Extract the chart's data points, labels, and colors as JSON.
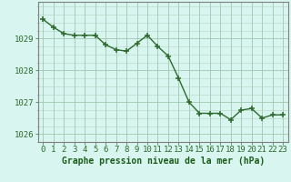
{
  "x": [
    0,
    1,
    2,
    3,
    4,
    5,
    6,
    7,
    8,
    9,
    10,
    11,
    12,
    13,
    14,
    15,
    16,
    17,
    18,
    19,
    20,
    21,
    22,
    23
  ],
  "y": [
    1029.6,
    1029.35,
    1029.15,
    1029.1,
    1029.1,
    1029.1,
    1028.8,
    1028.65,
    1028.6,
    1028.85,
    1029.1,
    1028.75,
    1028.45,
    1027.75,
    1027.0,
    1026.65,
    1026.65,
    1026.65,
    1026.45,
    1026.75,
    1026.8,
    1026.5,
    1026.6,
    1026.6
  ],
  "line_color": "#2d6a2d",
  "marker_color": "#2d6a2d",
  "bg_color": "#d8f5f0",
  "grid_color": "#a0c8b0",
  "xlabel": "Graphe pression niveau de la mer (hPa)",
  "xlabel_color": "#1a5c1a",
  "tick_label_color": "#2d6a2d",
  "ylim": [
    1025.75,
    1030.15
  ],
  "yticks": [
    1026,
    1027,
    1028,
    1029
  ],
  "xlim": [
    -0.5,
    23.5
  ],
  "marker_size": 4.5,
  "line_width": 1.0,
  "font_size": 6.5
}
